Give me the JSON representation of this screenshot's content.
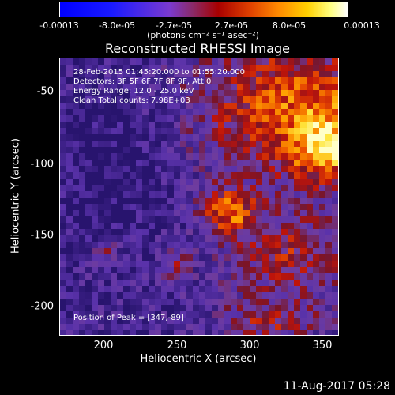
{
  "colorbar": {
    "ticks": [
      "-0.00013",
      "-8.0e-05",
      "-2.7e-05",
      "2.7e-05",
      "8.0e-05",
      "0.00013"
    ],
    "units": "(photons cm⁻² s⁻¹ asec⁻²)"
  },
  "title": "Reconstructed RHESSI Image",
  "annotations": {
    "time": "28-Feb-2015 01:45:20.000 to 01:55:20.000",
    "detectors": "Detectors: 3F 5F 6F 7F 8F 9F, Att 0",
    "energy": "Energy Range: 12.0 - 25.0 keV",
    "clean": "Clean     Total counts: 7.98E+03",
    "peak": "Position of Peak = [347,-89]"
  },
  "axes": {
    "xlabel": "Heliocentric X (arcsec)",
    "ylabel": "Heliocentric Y (arcsec)",
    "xticks": [
      "200",
      "250",
      "300",
      "350"
    ],
    "yticks": [
      "-50",
      "-100",
      "-150",
      "-200"
    ]
  },
  "date": "11-Aug-2017 05:28",
  "colors": {
    "background": "#000000",
    "low": "#5a2ab0",
    "mid": "#c01010",
    "high": "#ffff60"
  }
}
